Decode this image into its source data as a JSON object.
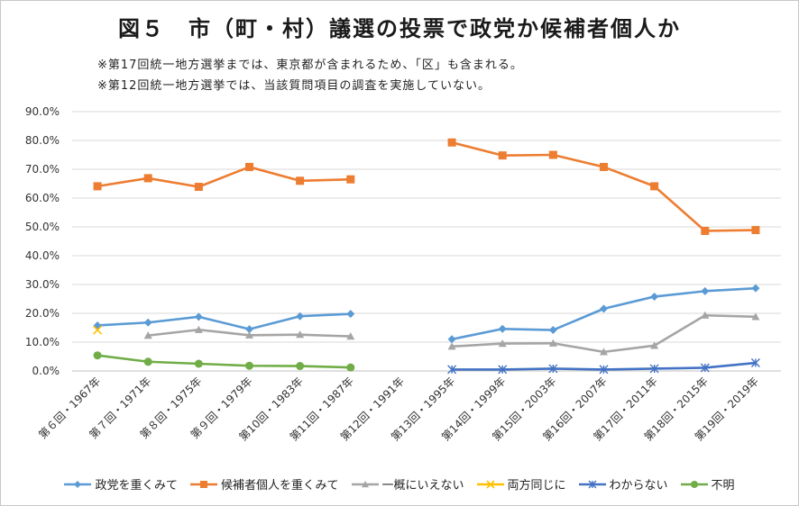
{
  "title": "図５　市（町・村）議選の投票で政党か候補者個人か",
  "notes": [
    "※第17回統一地方選挙までは、東京都が含まれるため、「区」も含まれる。",
    "※第12回統一地方選挙では、当該質問項目の調査を実施していない。"
  ],
  "chart_data": {
    "type": "line",
    "title": "図５　市（町・村）議選の投票で政党か候補者個人か",
    "xlabel": "",
    "ylabel": "",
    "ylim": [
      0,
      90
    ],
    "y_ticks": [
      "0.0%",
      "10.0%",
      "20.0%",
      "30.0%",
      "40.0%",
      "50.0%",
      "60.0%",
      "70.0%",
      "80.0%",
      "90.0%"
    ],
    "categories": [
      "第６回・1967年",
      "第７回・1971年",
      "第８回・1975年",
      "第９回・1979年",
      "第10回・1983年",
      "第11回・1987年",
      "第12回・1991年",
      "第13回・1995年",
      "第14回・1999年",
      "第15回・2003年",
      "第16回・2007年",
      "第17回・2011年",
      "第18回・2015年",
      "第19回・2019年"
    ],
    "grid": true,
    "legend_position": "bottom",
    "series": [
      {
        "name": "政党を重くみて",
        "color": "#5b9bd5",
        "marker": "diamond",
        "values": [
          15.8,
          16.8,
          18.8,
          14.5,
          19.0,
          19.8,
          null,
          11.0,
          14.6,
          14.2,
          21.6,
          25.8,
          27.7,
          28.7
        ]
      },
      {
        "name": "候補者個人を重くみて",
        "color": "#ed7d31",
        "marker": "square",
        "values": [
          64.1,
          66.9,
          63.9,
          70.8,
          66.0,
          66.5,
          null,
          79.3,
          74.8,
          75.0,
          70.8,
          64.1,
          48.6,
          48.9
        ]
      },
      {
        "name": "一概にいえない",
        "color": "#a5a5a5",
        "marker": "triangle",
        "values": [
          null,
          12.3,
          14.3,
          12.4,
          12.6,
          12.0,
          null,
          8.5,
          9.5,
          9.6,
          6.6,
          8.8,
          19.3,
          18.8
        ]
      },
      {
        "name": "両方同じに",
        "color": "#ffc000",
        "marker": "x",
        "values": [
          14.2,
          null,
          null,
          null,
          null,
          null,
          null,
          null,
          null,
          null,
          null,
          null,
          null,
          null
        ]
      },
      {
        "name": "わからない",
        "color": "#4472c4",
        "marker": "star",
        "values": [
          null,
          null,
          null,
          null,
          null,
          null,
          null,
          0.5,
          0.5,
          0.8,
          0.5,
          0.8,
          1.1,
          2.8
        ]
      },
      {
        "name": "不明",
        "color": "#70ad47",
        "marker": "circle",
        "values": [
          5.4,
          3.2,
          2.5,
          1.8,
          1.7,
          1.2,
          null,
          null,
          null,
          null,
          null,
          null,
          null,
          null
        ]
      }
    ]
  }
}
